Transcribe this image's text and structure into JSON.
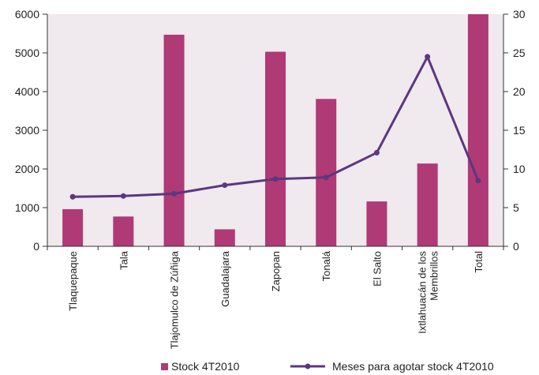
{
  "chart_data": {
    "type": "bar",
    "categories": [
      "Tlaquepaque",
      "Tala",
      "Tlajomulco de Zúñiga",
      "Guadalajara",
      "Zapopan",
      "Tonalá",
      "El Salto",
      "Ixtlahuacán de los Membrillos",
      "Total"
    ],
    "series": [
      {
        "name": "Stock 4T2010",
        "type": "bar",
        "axis": "left",
        "color": "#b03a76",
        "values": [
          960,
          770,
          5470,
          440,
          5030,
          3810,
          1160,
          2140,
          6000
        ]
      },
      {
        "name": "Meses para agotar stock 4T2010",
        "type": "line",
        "axis": "right",
        "color": "#5b3780",
        "values": [
          6.4,
          6.5,
          6.8,
          7.9,
          8.7,
          8.9,
          12.1,
          24.5,
          8.5
        ]
      }
    ],
    "y_left": {
      "min": 0,
      "max": 6000,
      "ticks": [
        0,
        1000,
        2000,
        3000,
        4000,
        5000,
        6000
      ]
    },
    "y_right": {
      "min": 0,
      "max": 30,
      "ticks": [
        0,
        5,
        10,
        15,
        20,
        25,
        30
      ]
    },
    "plot_background": "#f0e9ee",
    "grid": false,
    "legend_position": "bottom"
  }
}
